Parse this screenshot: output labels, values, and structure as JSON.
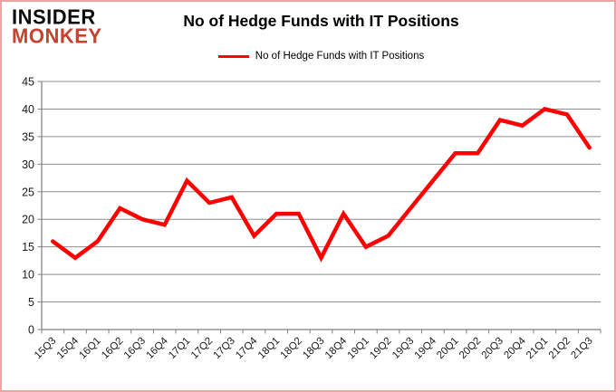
{
  "page": {
    "logo_line1": "INSIDER",
    "logo_line2": "MONKEY",
    "title": "No of Hedge Funds with IT Positions",
    "legend_label": "No of Hedge Funds with IT Positions"
  },
  "colors": {
    "series_line": "#ff0000",
    "logo_accent": "#c8402e",
    "gridline": "#8e8e8e",
    "axis": "#7f7f7f",
    "page_border": "#f0a3a3"
  },
  "chart_data": {
    "type": "line",
    "title": "No of Hedge Funds with IT Positions",
    "legend_entries": [
      "No of Hedge Funds with IT Positions"
    ],
    "legend_position": "top",
    "grid": true,
    "xlabel": "",
    "ylabel": "",
    "ylim": [
      0,
      45
    ],
    "ytick_step": 5,
    "categories": [
      "15Q3",
      "15Q4",
      "16Q1",
      "16Q2",
      "16Q3",
      "16Q4",
      "17Q1",
      "17Q2",
      "17Q3",
      "17Q4",
      "18Q1",
      "18Q2",
      "18Q3",
      "18Q4",
      "19Q1",
      "19Q2",
      "19Q3",
      "19Q4",
      "20Q1",
      "20Q2",
      "20Q3",
      "20Q4",
      "21Q1",
      "21Q2",
      "21Q3"
    ],
    "series": [
      {
        "name": "No of Hedge Funds with IT Positions",
        "color": "#ff0000",
        "values": [
          16,
          13,
          16,
          22,
          20,
          19,
          27,
          23,
          24,
          17,
          21,
          21,
          13,
          21,
          15,
          17,
          22,
          27,
          32,
          32,
          38,
          37,
          40,
          39,
          33
        ]
      }
    ]
  }
}
